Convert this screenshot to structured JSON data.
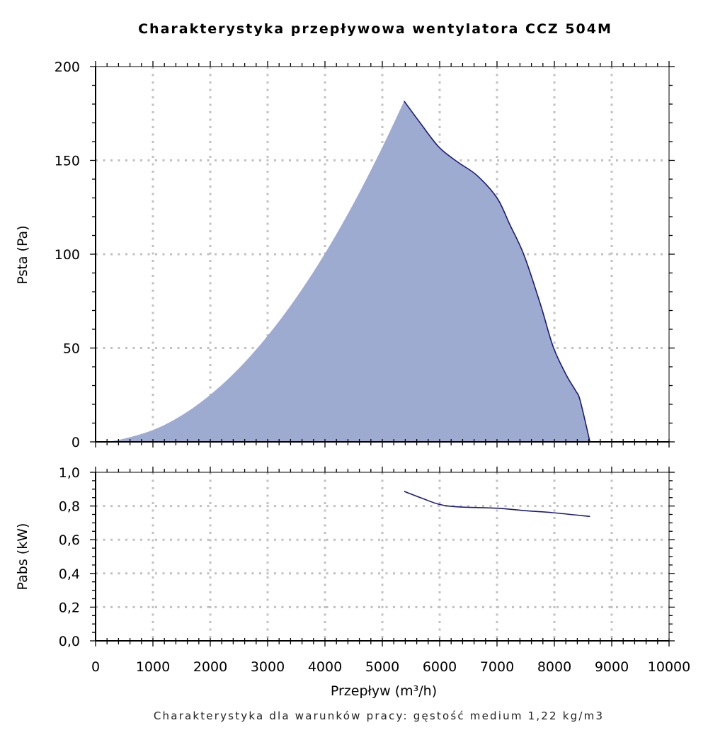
{
  "colors": {
    "fill": "#9eabd0",
    "line": "#1a1a80",
    "grid": "#c0c0c0",
    "axis": "#000000"
  },
  "chart_data": [
    {
      "type": "area",
      "title": "Charakterystyka przepływowa wentylatora CCZ 504M",
      "xlabel": "",
      "ylabel": "Psta (Pa)",
      "xlim": [
        0,
        10000
      ],
      "ylim": [
        0,
        200
      ],
      "grid": true,
      "x_ticks": [
        "0",
        "1000",
        "2000",
        "3000",
        "4000",
        "5000",
        "6000",
        "7000",
        "8000",
        "9000",
        "10000"
      ],
      "y_ticks": [
        "0",
        "50",
        "100",
        "150",
        "200"
      ],
      "fill_lower_boundary": {
        "x": [
          400,
          1000,
          1500,
          2000,
          2500,
          3000,
          3500,
          4000,
          4500,
          5000,
          5380
        ],
        "y": [
          1,
          6.3,
          14.1,
          25.1,
          39.2,
          56.5,
          76.9,
          100.4,
          127.1,
          157,
          181.6
        ]
      },
      "series": [
        {
          "x": [
            5380,
            5660,
            5990,
            6320,
            6650,
            7000,
            7220,
            7470,
            7760,
            7980,
            8210,
            8370,
            8450,
            8620
          ],
          "y": [
            181.6,
            170,
            157,
            149,
            142,
            130,
            116,
            99.6,
            73,
            50.6,
            35.5,
            27.3,
            22,
            0
          ]
        }
      ]
    },
    {
      "type": "line",
      "xlabel": "Przepływ (m³/h)",
      "ylabel": "Pabs (kW)",
      "xlim": [
        0,
        10000
      ],
      "ylim": [
        0,
        1.0
      ],
      "grid": true,
      "x_ticks": [
        "0",
        "1000",
        "2000",
        "3000",
        "4000",
        "5000",
        "6000",
        "7000",
        "8000",
        "9000",
        "10000"
      ],
      "y_ticks": [
        "0,0",
        "0,2",
        "0,4",
        "0,6",
        "0,8",
        "1,0"
      ],
      "series": [
        {
          "x": [
            5380,
            5700,
            5990,
            6320,
            7000,
            7470,
            7980,
            8620
          ],
          "y": [
            0.887,
            0.845,
            0.81,
            0.795,
            0.787,
            0.773,
            0.76,
            0.738
          ]
        }
      ]
    }
  ],
  "footnote": "Charakterystyka dla warunków pracy: gęstość medium 1,22 kg/m3"
}
